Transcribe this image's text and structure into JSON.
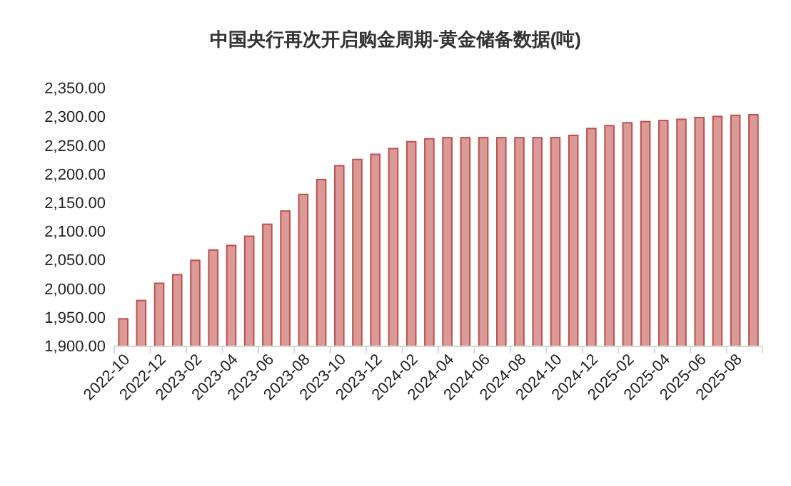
{
  "chart_data": {
    "type": "bar",
    "title": "中国央行再次开启购金周期-黄金储备数据(吨)",
    "categories": [
      "2022-10",
      null,
      "2022-12",
      null,
      "2023-02",
      null,
      "2023-04",
      null,
      "2023-06",
      null,
      "2023-08",
      null,
      "2023-10",
      null,
      "2023-12",
      null,
      "2024-02",
      null,
      "2024-04",
      null,
      "2024-06",
      null,
      "2024-08",
      null,
      "2024-10",
      null,
      "2024-12",
      null,
      "2025-02",
      null,
      "2025-04",
      null,
      "2025-06",
      null,
      "2025-08",
      null
    ],
    "values": [
      1948,
      1980,
      2010,
      2025,
      2050,
      2068,
      2076,
      2092,
      2113,
      2136,
      2165,
      2191,
      2215,
      2226,
      2235,
      2245,
      2257,
      2262,
      2264,
      2264,
      2264,
      2264,
      2264,
      2264,
      2264,
      2268,
      2280,
      2285,
      2290,
      2292,
      2294,
      2296,
      2299,
      2301,
      2303,
      2304
    ],
    "color": "#d99a98",
    "ylim": [
      1900,
      2350
    ],
    "yticks": [
      {
        "value": 1900,
        "label": "1,900.00"
      },
      {
        "value": 1950,
        "label": "1,950.00"
      },
      {
        "value": 2000,
        "label": "2,000.00"
      },
      {
        "value": 2050,
        "label": "2,050.00"
      },
      {
        "value": 2100,
        "label": "2,100.00"
      },
      {
        "value": 2150,
        "label": "2,150.00"
      },
      {
        "value": 2200,
        "label": "2,200.00"
      },
      {
        "value": 2250,
        "label": "2,250.00"
      },
      {
        "value": 2300,
        "label": "2,300.00"
      },
      {
        "value": 2350,
        "label": "2,350.00"
      }
    ]
  }
}
